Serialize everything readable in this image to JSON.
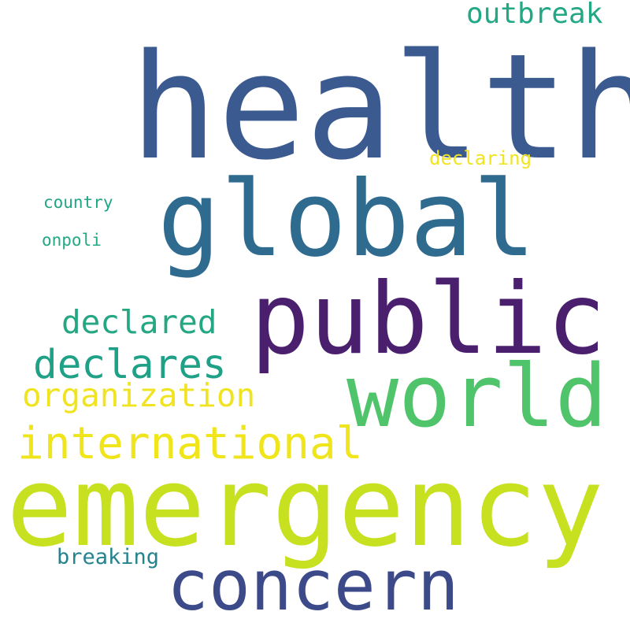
{
  "words": [
    {
      "text": "health",
      "color": "#3b5a8f"
    },
    {
      "text": "global",
      "color": "#2f6a8f"
    },
    {
      "text": "public",
      "color": "#4a1f6e"
    },
    {
      "text": "world",
      "color": "#4fc46a"
    },
    {
      "text": "emergency",
      "color": "#c7e020"
    },
    {
      "text": "concern",
      "color": "#3c4a8a"
    },
    {
      "text": "international",
      "color": "#efe51a"
    },
    {
      "text": "organization",
      "color": "#f0e422"
    },
    {
      "text": "declares",
      "color": "#1fa187"
    },
    {
      "text": "declared",
      "color": "#25a784"
    },
    {
      "text": "outbreak",
      "color": "#22a884"
    },
    {
      "text": "declaring",
      "color": "#f0e422"
    },
    {
      "text": "country",
      "color": "#21a685"
    },
    {
      "text": "onpoli",
      "color": "#22a884"
    },
    {
      "text": "breaking",
      "color": "#25838e"
    }
  ]
}
